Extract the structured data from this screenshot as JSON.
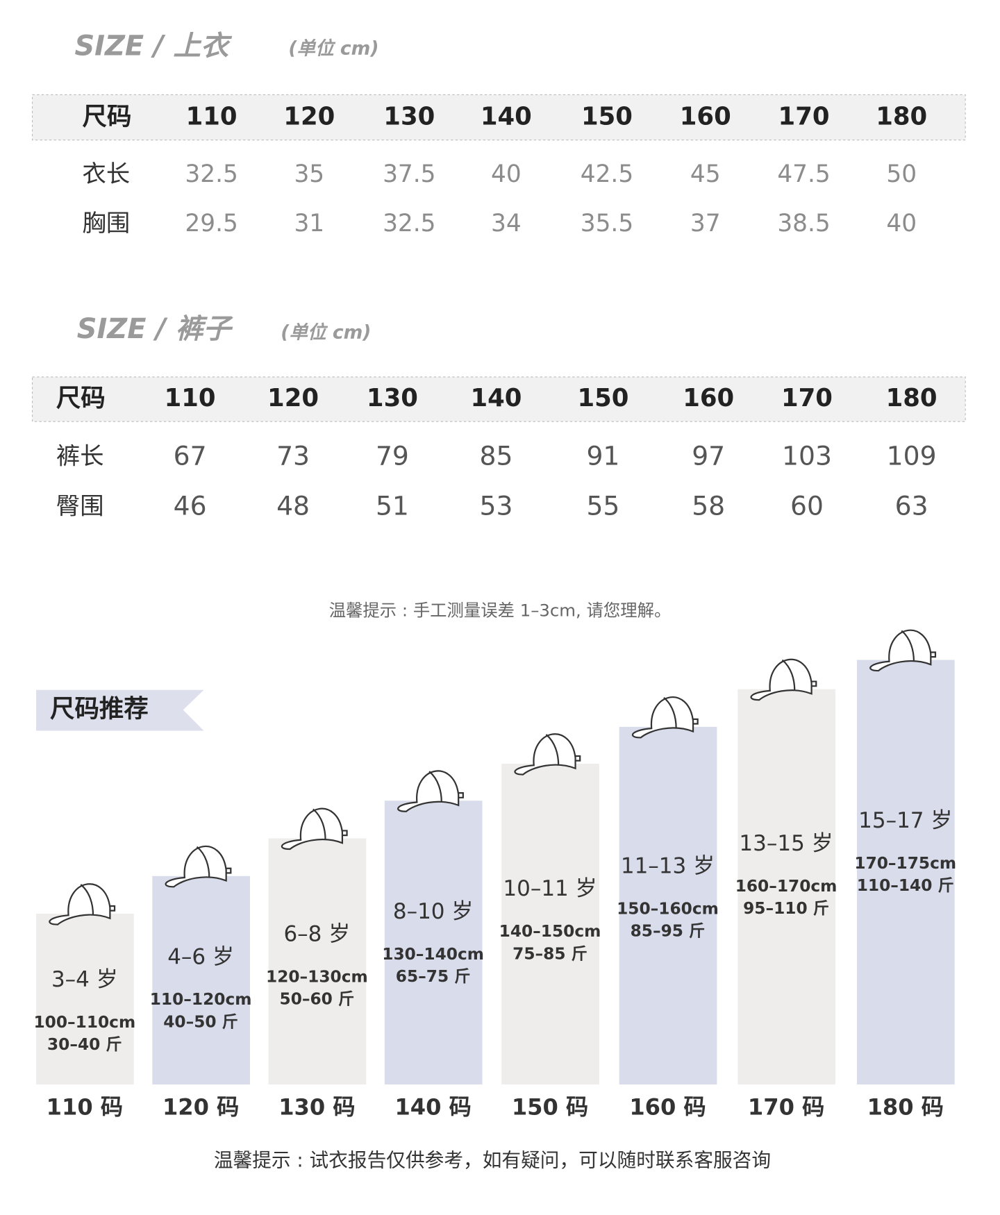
{
  "top": {
    "title": "SIZE / 上衣",
    "unit": "(单位 cm)",
    "header": [
      "尺码",
      "110",
      "120",
      "130",
      "140",
      "150",
      "160",
      "170",
      "180"
    ],
    "rows": [
      [
        "衣长",
        "32.5",
        "35",
        "37.5",
        "40",
        "42.5",
        "45",
        "47.5",
        "50"
      ],
      [
        "胸围",
        "29.5",
        "31",
        "32.5",
        "34",
        "35.5",
        "37",
        "38.5",
        "40"
      ]
    ]
  },
  "pants": {
    "title": "SIZE / 裤子",
    "unit": "(单位 cm)",
    "header": [
      "尺码",
      "110",
      "120",
      "130",
      "140",
      "150",
      "160",
      "170",
      "180"
    ],
    "rows": [
      [
        "裤长",
        "67",
        "73",
        "79",
        "85",
        "91",
        "97",
        "103",
        "109"
      ],
      [
        "臀围",
        "46",
        "48",
        "51",
        "53",
        "55",
        "58",
        "60",
        "63"
      ]
    ]
  },
  "note1": "温馨提示 : 手工测量误差 1–3cm, 请您理解。",
  "recommend": {
    "title": "尺码推荐",
    "items": [
      {
        "age": "3–4 岁",
        "height": "100–110cm",
        "weight": "30–40 斤",
        "size": "110 码"
      },
      {
        "age": "4–6 岁",
        "height": "110–120cm",
        "weight": "40–50 斤",
        "size": "120 码"
      },
      {
        "age": "6–8 岁",
        "height": "120–130cm",
        "weight": "50–60 斤",
        "size": "130 码"
      },
      {
        "age": "8–10 岁",
        "height": "130–140cm",
        "weight": "65–75 斤",
        "size": "140 码"
      },
      {
        "age": "10–11 岁",
        "height": "140–150cm",
        "weight": "75–85 斤",
        "size": "150 码"
      },
      {
        "age": "11–13 岁",
        "height": "150–160cm",
        "weight": "85–95 斤",
        "size": "160 码"
      },
      {
        "age": "13–15 岁",
        "height": "160–170cm",
        "weight": "95–110 斤",
        "size": "170 码"
      },
      {
        "age": "15–17 岁",
        "height": "170–175cm",
        "weight": "110–140 斤",
        "size": "180 码"
      }
    ]
  },
  "note2": "温馨提示 : 试衣报告仅供参考，如有疑问，可以随时联系客服咨询"
}
